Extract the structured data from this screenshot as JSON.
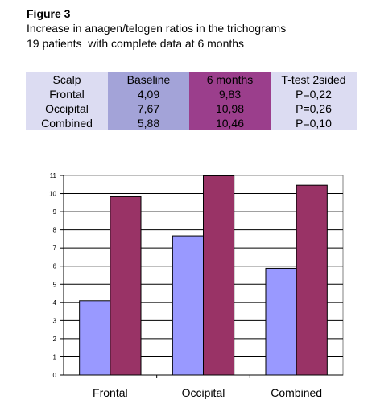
{
  "figure": {
    "title": "Figure 3",
    "subtitle_line1": "Increase in anagen/telogen ratios in the trichograms",
    "subtitle_line2": "19 patients  with complete data at 6 months"
  },
  "table": {
    "headers": [
      "Scalp",
      "Baseline",
      "6 months",
      "T-test 2sided"
    ],
    "rows": [
      [
        "Frontal",
        "4,09",
        "9,83",
        "P=0,22"
      ],
      [
        "Occipital",
        "7,67",
        "10,98",
        "P=0,26"
      ],
      [
        "Combined",
        "5,88",
        "10,46",
        "P=0,10"
      ]
    ]
  },
  "colors": {
    "baseline": "#9999ff",
    "six_months": "#993366",
    "plot_border": "#808080"
  },
  "chart_data": {
    "type": "bar",
    "categories": [
      "Frontal",
      "Occipital",
      "Combined"
    ],
    "series": [
      {
        "values": [
          4.09,
          7.67,
          5.88
        ]
      },
      {
        "values": [
          9.83,
          10.98,
          10.46
        ]
      }
    ],
    "ylim": [
      0,
      11
    ],
    "yticks": [
      "0",
      "1",
      "2",
      "3",
      "4",
      "5",
      "6",
      "7",
      "8",
      "9",
      "10",
      "11"
    ],
    "grid": true,
    "legend": "none"
  }
}
